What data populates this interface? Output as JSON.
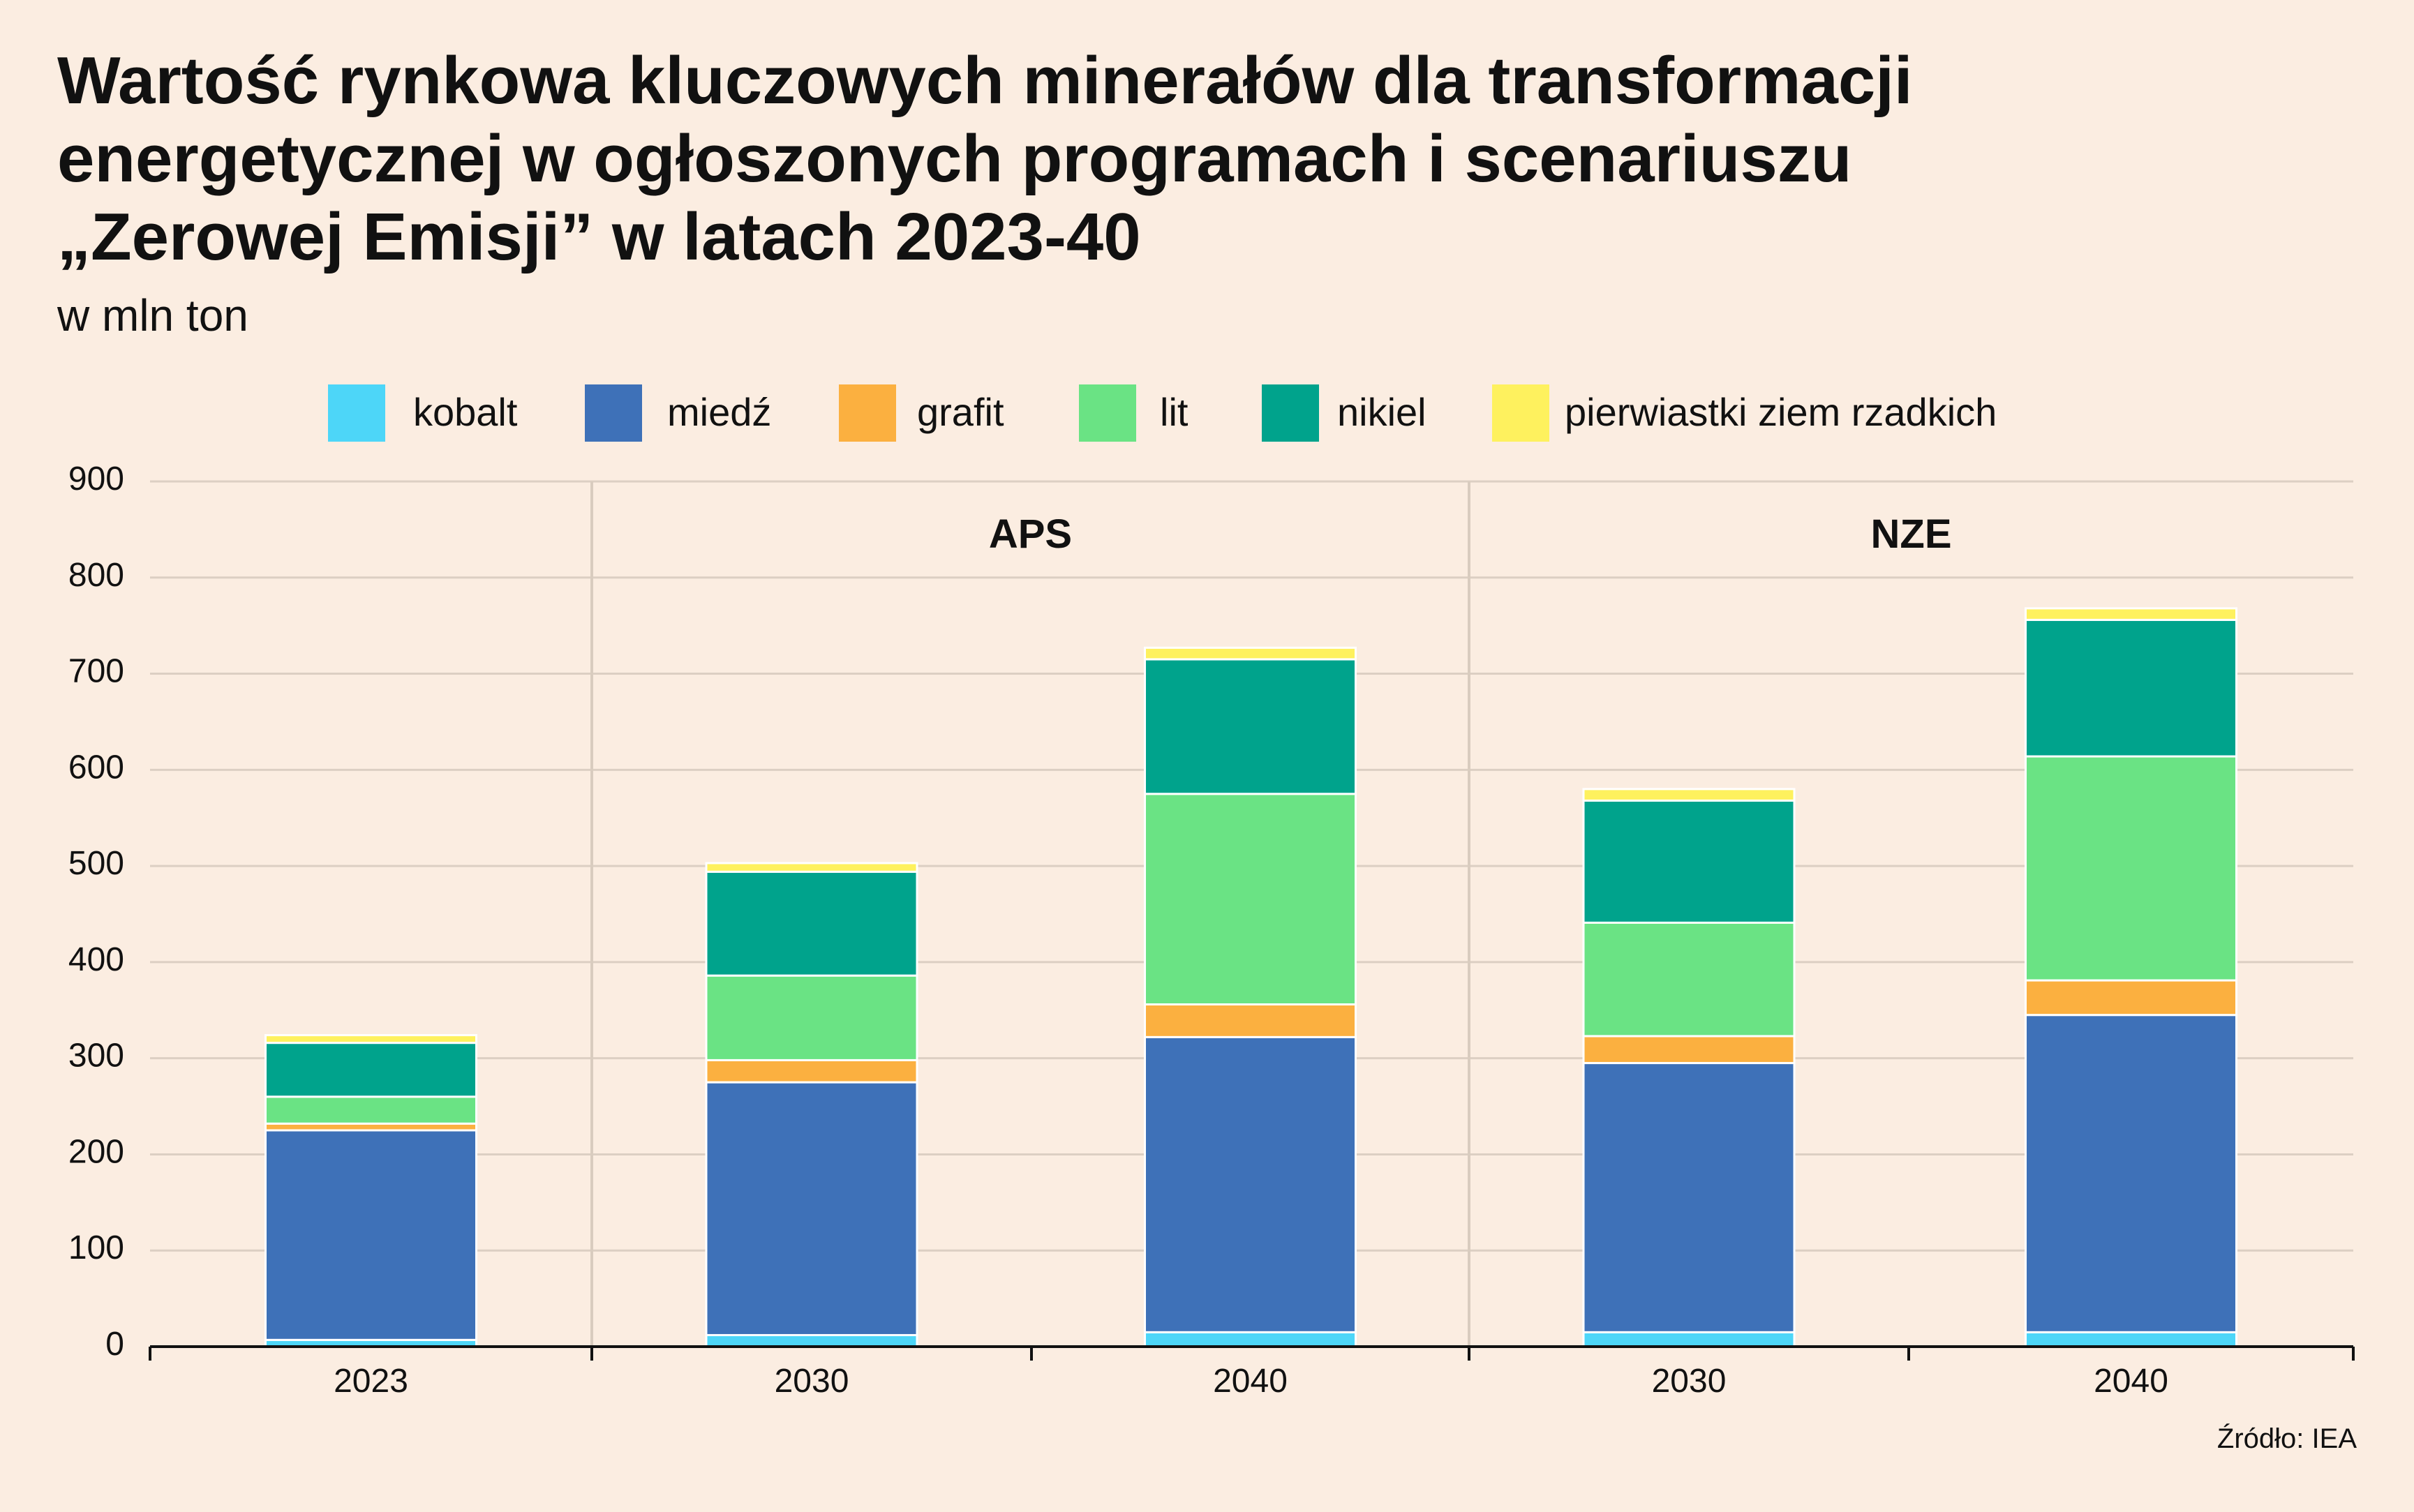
{
  "title_lines": [
    "Wartość rynkowa kluczowych minerałów dla transformacji",
    "energetycznej w ogłoszonych programach i scenariuszu",
    "„Zerowej Emisji” w latach 2023-40"
  ],
  "subtitle": "w mln ton",
  "source": "Źródło: IEA",
  "chart_data": {
    "type": "bar",
    "stacked": true,
    "title": "Wartość rynkowa kluczowych minerałów dla transformacji energetycznej w ogłoszonych programach i scenariuszu „Zerowej Emisji” w latach 2023-40",
    "ylabel": "w mln ton",
    "ylim": [
      0,
      900
    ],
    "yticks": [
      "0",
      "100",
      "200",
      "300",
      "400",
      "500",
      "600",
      "700",
      "800",
      "900"
    ],
    "categories": [
      "2023",
      "2030",
      "2040",
      "2030",
      "2040"
    ],
    "groups": [
      {
        "label": "",
        "categories": [
          0
        ]
      },
      {
        "label": "APS",
        "categories": [
          1,
          2
        ]
      },
      {
        "label": "NZE",
        "categories": [
          3,
          4
        ]
      }
    ],
    "grid": true,
    "legend_position": "top",
    "series": [
      {
        "name": "kobalt",
        "color": "#4dd6f8",
        "values": [
          7,
          12,
          15,
          15,
          15
        ]
      },
      {
        "name": "miedź",
        "color": "#3e71b8",
        "values": [
          218,
          263,
          307,
          280,
          330
        ]
      },
      {
        "name": "grafit",
        "color": "#fbb040",
        "values": [
          7,
          23,
          34,
          28,
          36
        ]
      },
      {
        "name": "lit",
        "color": "#6ae384",
        "values": [
          28,
          88,
          219,
          118,
          233
        ]
      },
      {
        "name": "nikiel",
        "color": "#00a38c",
        "values": [
          56,
          108,
          140,
          127,
          142
        ]
      },
      {
        "name": "pierwiastki ziem rzadkich",
        "color": "#fef15e",
        "values": [
          8,
          9,
          12,
          12,
          12
        ]
      }
    ]
  }
}
